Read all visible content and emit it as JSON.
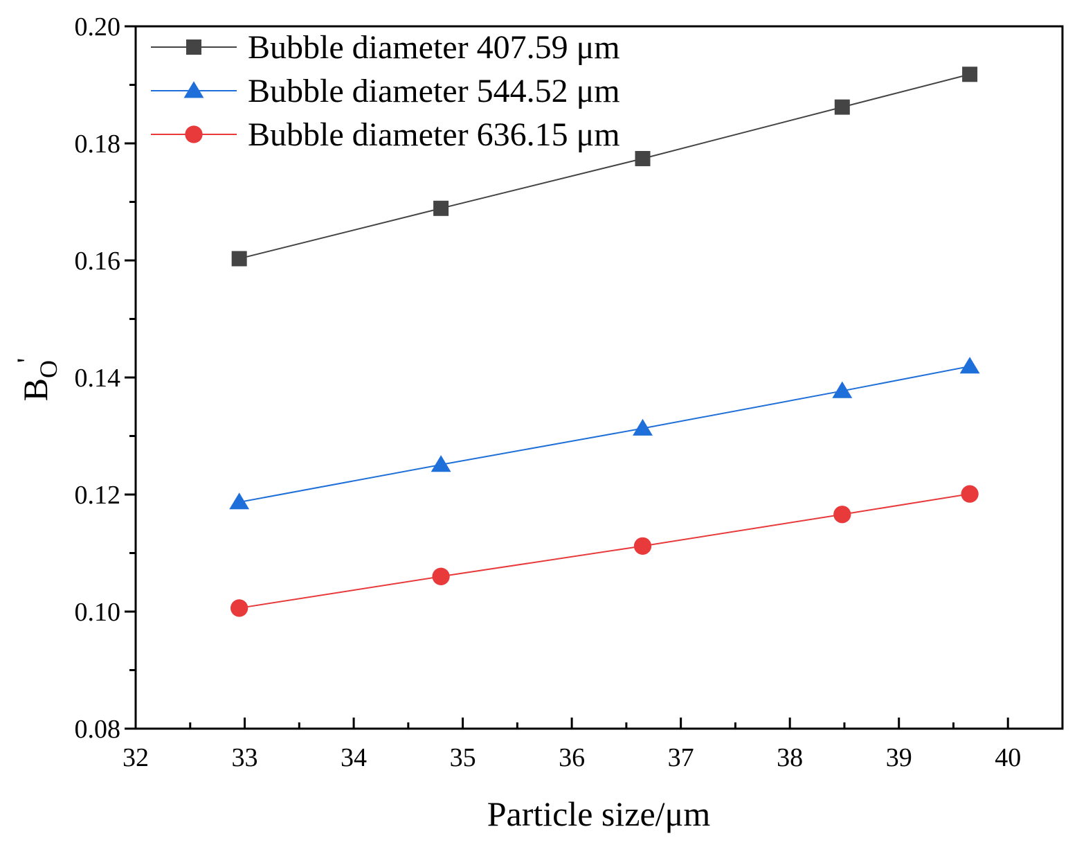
{
  "chart_data": {
    "type": "line",
    "title": "",
    "xlabel": "Particle size/μm",
    "ylabel": "B",
    "ylabel_subscript": "O",
    "ylabel_superscript": "'",
    "xlim": [
      32,
      40.5
    ],
    "ylim": [
      0.08,
      0.2
    ],
    "x_ticks": [
      "32",
      "33",
      "34",
      "35",
      "36",
      "37",
      "38",
      "39",
      "40"
    ],
    "y_ticks": [
      "0.08",
      "0.10",
      "0.12",
      "0.14",
      "0.16",
      "0.18",
      "0.20"
    ],
    "x_tick_values": [
      32,
      33,
      34,
      35,
      36,
      37,
      38,
      39,
      40
    ],
    "y_tick_values": [
      0.08,
      0.1,
      0.12,
      0.14,
      0.16,
      0.18,
      0.2
    ],
    "legend_position": "top-left",
    "series": [
      {
        "name": "Bubble diameter 407.59 μm",
        "marker": "square",
        "color": "#444444",
        "x": [
          32.95,
          34.8,
          36.65,
          38.48,
          39.65
        ],
        "values": [
          0.1603,
          0.1689,
          0.1774,
          0.1862,
          0.1918
        ]
      },
      {
        "name": "Bubble diameter 544.52 μm",
        "marker": "triangle",
        "color": "#1E6FD9",
        "x": [
          32.95,
          34.8,
          36.65,
          38.48,
          39.65
        ],
        "values": [
          0.1187,
          0.1251,
          0.1313,
          0.1377,
          0.1419
        ]
      },
      {
        "name": "Bubble diameter 636.15 μm",
        "marker": "circle",
        "color": "#E8393B",
        "x": [
          32.95,
          34.8,
          36.65,
          38.48,
          39.65
        ],
        "values": [
          0.1006,
          0.106,
          0.1112,
          0.1166,
          0.1201
        ]
      }
    ]
  }
}
